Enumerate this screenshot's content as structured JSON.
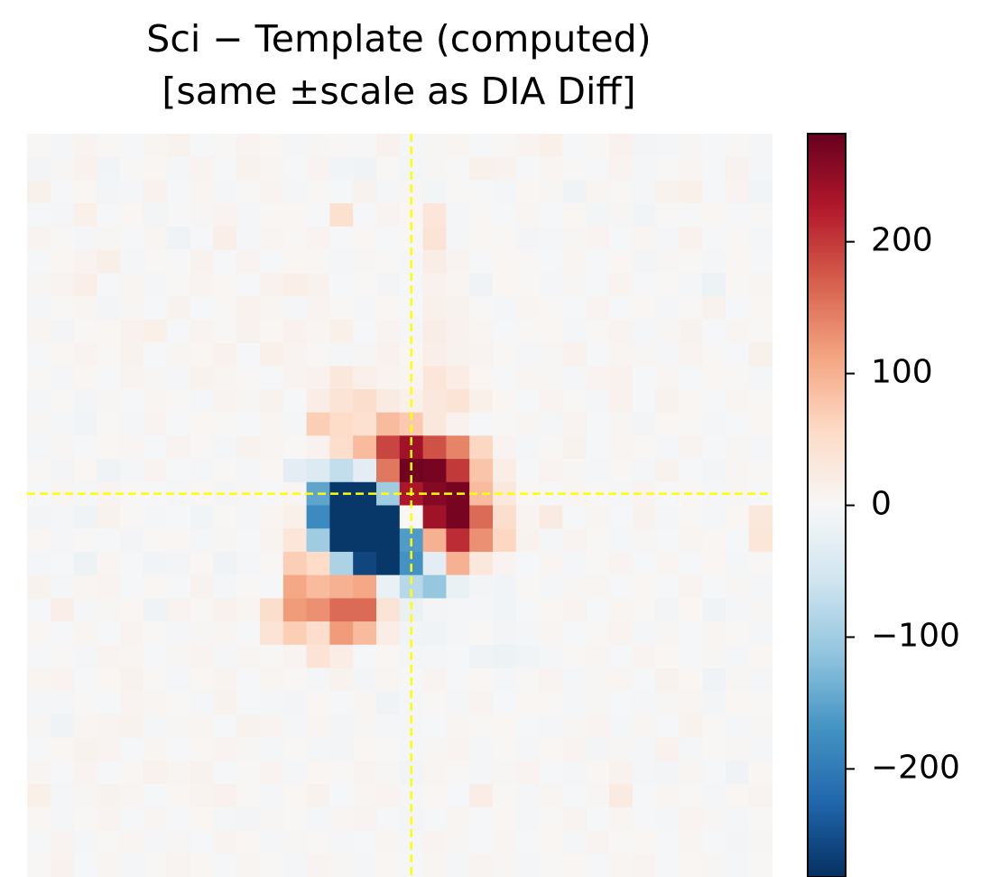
{
  "chart_data": {
    "type": "heatmap",
    "title": "Sci − Template (computed)",
    "subtitle": "[same ±scale as DIA Diff]",
    "colormap": "RdBu_r",
    "zlim": [
      -282,
      282
    ],
    "zticks": [
      {
        "value": -200,
        "label": "−200"
      },
      {
        "value": -100,
        "label": "−100"
      },
      0,
      100,
      200
    ],
    "crosshair": {
      "x": 16,
      "y": 15,
      "color": "#ffff00"
    },
    "z": [
      [
        3,
        -5,
        8,
        2,
        -3,
        6,
        10,
        -4,
        2,
        8,
        5,
        -6,
        4,
        3,
        -2,
        12,
        -5,
        4,
        7,
        -3,
        2,
        8,
        15,
        -4,
        3,
        12,
        -8,
        -6,
        4,
        -3,
        2,
        -5
      ],
      [
        -8,
        4,
        12,
        -10,
        3,
        5,
        -6,
        8,
        -4,
        10,
        6,
        -3,
        8,
        -9,
        -12,
        3,
        -7,
        4,
        -2,
        14,
        10,
        -3,
        6,
        2,
        -4,
        8,
        -5,
        2,
        6,
        -3,
        10,
        -6
      ],
      [
        14,
        -3,
        5,
        -8,
        -6,
        12,
        -4,
        6,
        -5,
        3,
        8,
        -6,
        2,
        -3,
        10,
        -5,
        4,
        -7,
        3,
        -2,
        -6,
        5,
        4,
        -12,
        6,
        3,
        -5,
        10,
        15,
        -4,
        8,
        -9
      ],
      [
        -4,
        -6,
        15,
        -3,
        5,
        -8,
        -2,
        4,
        8,
        -6,
        3,
        5,
        -4,
        45,
        -3,
        8,
        5,
        35,
        -6,
        2,
        -4,
        6,
        -3,
        5,
        -7,
        4,
        -9,
        3,
        -2,
        5,
        -4,
        2
      ],
      [
        8,
        2,
        -5,
        4,
        -3,
        6,
        -12,
        -4,
        18,
        -5,
        6,
        3,
        8,
        -3,
        5,
        -4,
        2,
        40,
        -6,
        5,
        3,
        -8,
        -5,
        4,
        8,
        -3,
        6,
        -5,
        12,
        -4,
        3,
        -6
      ],
      [
        -3,
        5,
        8,
        16,
        -5,
        3,
        -2,
        10,
        -4,
        8,
        -3,
        5,
        2,
        -6,
        4,
        3,
        -5,
        20,
        8,
        -3,
        5,
        2,
        -4,
        6,
        -3,
        5,
        -8,
        4,
        3,
        -6,
        5,
        -3
      ],
      [
        4,
        8,
        18,
        -3,
        6,
        -5,
        3,
        8,
        5,
        -3,
        12,
        18,
        10,
        -4,
        3,
        -8,
        -3,
        12,
        6,
        -12,
        5,
        3,
        -6,
        4,
        -3,
        8,
        -4,
        2,
        -5,
        -15,
        3,
        6
      ],
      [
        -5,
        3,
        6,
        -8,
        4,
        -3,
        10,
        -4,
        3,
        12,
        6,
        -5,
        8,
        3,
        -6,
        5,
        -4,
        15,
        10,
        3,
        -5,
        6,
        3,
        -4,
        8,
        -3,
        5,
        -6,
        3,
        10,
        -4,
        5
      ],
      [
        6,
        -8,
        3,
        5,
        12,
        15,
        -4,
        8,
        3,
        10,
        5,
        12,
        6,
        15,
        -3,
        8,
        -5,
        20,
        12,
        6,
        -4,
        3,
        5,
        -6,
        3,
        8,
        -5,
        4,
        10,
        -3,
        6,
        3
      ],
      [
        -4,
        5,
        8,
        3,
        10,
        -3,
        6,
        5,
        12,
        -4,
        15,
        8,
        3,
        -6,
        4,
        12,
        5,
        18,
        10,
        8,
        3,
        -5,
        4,
        12,
        -3,
        6,
        4,
        -5,
        8,
        3,
        -4,
        14
      ],
      [
        3,
        -6,
        5,
        -3,
        8,
        4,
        -5,
        10,
        6,
        3,
        -3,
        8,
        12,
        30,
        15,
        8,
        6,
        35,
        20,
        5,
        -3,
        6,
        4,
        -5,
        8,
        12,
        -3,
        6,
        -4,
        5,
        3,
        -6
      ],
      [
        -5,
        3,
        -8,
        4,
        -3,
        6,
        3,
        -5,
        8,
        4,
        10,
        -4,
        20,
        40,
        50,
        25,
        15,
        30,
        40,
        15,
        5,
        -4,
        8,
        3,
        -6,
        12,
        -3,
        10,
        5,
        -4,
        6,
        3
      ],
      [
        4,
        -5,
        -10,
        3,
        -6,
        8,
        -4,
        5,
        3,
        -3,
        6,
        -5,
        70,
        55,
        45,
        90,
        75,
        30,
        12,
        -4,
        3,
        6,
        -5,
        8,
        -3,
        4,
        -8,
        5,
        3,
        -6,
        -3,
        5
      ],
      [
        -6,
        4,
        -3,
        5,
        6,
        -4,
        8,
        3,
        -5,
        10,
        6,
        3,
        12,
        50,
        90,
        190,
        240,
        180,
        140,
        60,
        8,
        -5,
        3,
        10,
        -4,
        6,
        3,
        -5,
        8,
        -3,
        4,
        -6
      ],
      [
        3,
        -8,
        5,
        -12,
        -6,
        8,
        -4,
        -5,
        3,
        -6,
        5,
        -30,
        -40,
        -70,
        -30,
        150,
        275,
        270,
        200,
        80,
        20,
        -3,
        8,
        4,
        -6,
        3,
        -5,
        10,
        -4,
        -8,
        6,
        3
      ],
      [
        -4,
        6,
        -5,
        8,
        3,
        -3,
        -6,
        5,
        -8,
        4,
        -3,
        6,
        -150,
        -275,
        -275,
        -100,
        230,
        260,
        270,
        90,
        30,
        5,
        -4,
        6,
        3,
        -5,
        8,
        -3,
        5,
        -6,
        4,
        -3
      ],
      [
        -8,
        -5,
        -12,
        10,
        3,
        -6,
        -4,
        -10,
        3,
        -5,
        6,
        15,
        -180,
        -275,
        -275,
        -275,
        0,
        240,
        270,
        160,
        50,
        8,
        25,
        -4,
        6,
        -3,
        10,
        -5,
        3,
        -6,
        5,
        30
      ],
      [
        5,
        -6,
        3,
        -4,
        -8,
        3,
        5,
        -6,
        4,
        -3,
        8,
        35,
        -100,
        -275,
        -275,
        -275,
        -160,
        100,
        210,
        130,
        60,
        10,
        -5,
        8,
        3,
        -6,
        4,
        -3,
        6,
        5,
        -4,
        35
      ],
      [
        -6,
        -4,
        -15,
        6,
        -3,
        -10,
        -8,
        5,
        -12,
        -6,
        3,
        70,
        55,
        -90,
        -260,
        -275,
        -170,
        -30,
        100,
        30,
        8,
        -3,
        6,
        -5,
        3,
        8,
        -4,
        6,
        -3,
        5,
        -6,
        3
      ],
      [
        10,
        -5,
        6,
        8,
        -3,
        5,
        -4,
        10,
        -6,
        3,
        -4,
        110,
        90,
        100,
        110,
        -20,
        -80,
        -110,
        -20,
        -8,
        -10,
        3,
        -5,
        4,
        6,
        -3,
        5,
        -4,
        8,
        -3,
        4,
        -6
      ],
      [
        -3,
        18,
        -6,
        4,
        5,
        -12,
        8,
        3,
        12,
        6,
        50,
        120,
        130,
        160,
        160,
        40,
        -20,
        -8,
        -6,
        -5,
        -10,
        -3,
        5,
        8,
        -4,
        6,
        3,
        -8,
        5,
        -12,
        -6,
        4
      ],
      [
        5,
        -4,
        6,
        -3,
        8,
        3,
        -5,
        4,
        6,
        -3,
        40,
        70,
        50,
        120,
        90,
        20,
        -10,
        -12,
        -6,
        3,
        -8,
        -5,
        6,
        -4,
        3,
        8,
        -5,
        4,
        -3,
        6,
        3,
        -5
      ],
      [
        -4,
        3,
        -5,
        8,
        6,
        -3,
        4,
        8,
        -5,
        6,
        3,
        8,
        40,
        20,
        -3,
        5,
        -8,
        -6,
        -4,
        -12,
        -15,
        -10,
        -5,
        3,
        6,
        -4,
        8,
        5,
        -3,
        4,
        -6,
        5
      ],
      [
        6,
        8,
        -4,
        5,
        10,
        3,
        -6,
        5,
        8,
        -4,
        6,
        3,
        -5,
        10,
        -8,
        6,
        -3,
        8,
        -4,
        5,
        -6,
        3,
        8,
        -5,
        4,
        6,
        -3,
        10,
        5,
        -12,
        4,
        -6
      ],
      [
        -5,
        -6,
        3,
        -4,
        8,
        6,
        3,
        -5,
        10,
        -3,
        -6,
        -8,
        5,
        -4,
        6,
        -12,
        -5,
        3,
        -6,
        8,
        -4,
        5,
        3,
        -6,
        4,
        -3,
        -5,
        4,
        6,
        -8,
        5,
        3
      ],
      [
        4,
        -12,
        6,
        8,
        10,
        -5,
        4,
        6,
        -3,
        10,
        8,
        -5,
        6,
        -8,
        4,
        -6,
        -5,
        -4,
        6,
        3,
        5,
        -3,
        -6,
        4,
        8,
        -5,
        6,
        -4,
        10,
        3,
        -6,
        4
      ],
      [
        -3,
        5,
        10,
        8,
        -4,
        6,
        -3,
        5,
        8,
        4,
        -6,
        3,
        -5,
        -8,
        5,
        3,
        -6,
        4,
        8,
        -5,
        3,
        -6,
        5,
        8,
        -8,
        4,
        -6,
        12,
        -5,
        3,
        4,
        -6
      ],
      [
        6,
        -4,
        8,
        -3,
        5,
        12,
        6,
        10,
        -4,
        3,
        8,
        -6,
        5,
        3,
        8,
        4,
        -10,
        6,
        3,
        -5,
        4,
        8,
        -4,
        -6,
        5,
        10,
        -5,
        -8,
        6,
        -4,
        -12,
        5
      ],
      [
        15,
        -5,
        4,
        10,
        6,
        -4,
        5,
        8,
        12,
        3,
        -6,
        5,
        10,
        -4,
        6,
        8,
        -6,
        5,
        -4,
        20,
        3,
        -5,
        6,
        -3,
        4,
        25,
        -4,
        6,
        3,
        -5,
        5,
        8
      ],
      [
        5,
        -6,
        3,
        8,
        -4,
        6,
        -3,
        5,
        -6,
        -8,
        4,
        3,
        -5,
        6,
        8,
        -4,
        -8,
        -3,
        6,
        -4,
        5,
        -6,
        3,
        8,
        -4,
        6,
        -3,
        -5,
        8,
        4,
        -6,
        3
      ],
      [
        -4,
        8,
        -5,
        3,
        6,
        -5,
        4,
        -3,
        8,
        5,
        -6,
        4,
        3,
        -5,
        -4,
        6,
        -5,
        8,
        4,
        -3,
        6,
        -4,
        5,
        -6,
        8,
        3,
        5,
        -4,
        6,
        -3,
        -8,
        4
      ],
      [
        3,
        12,
        -4,
        6,
        -5,
        3,
        8,
        5,
        -4,
        6,
        3,
        -5,
        8,
        4,
        -6,
        5,
        -3,
        6,
        -5,
        8,
        4,
        -6,
        3,
        5,
        -4,
        6,
        8,
        -3,
        5,
        4,
        -6,
        3
      ]
    ]
  }
}
